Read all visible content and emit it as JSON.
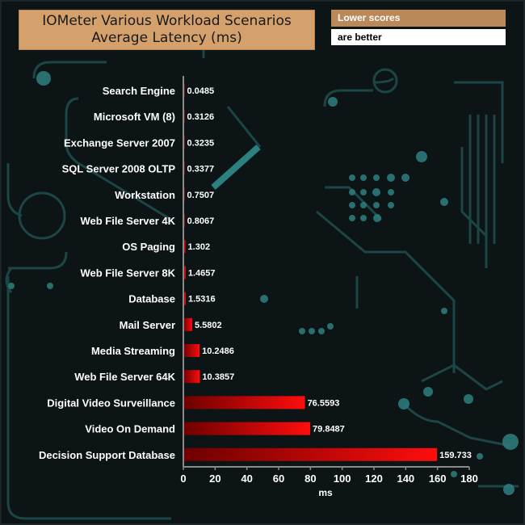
{
  "header": {
    "title_line1": "IOMeter Various Workload Scenarios",
    "title_line2": "Average Latency (ms)",
    "note_top": "Lower scores",
    "note_bottom": "are better"
  },
  "colors": {
    "bar_start": "#6e0000",
    "bar_end": "#ff0d0d",
    "title_bg": "#d4a06c",
    "note_top_bg": "#b9895a",
    "circuit": "#1f4e4f"
  },
  "chart_data": {
    "type": "bar",
    "orientation": "horizontal",
    "title": "IOMeter Various Workload Scenarios Average Latency (ms)",
    "xlabel": "ms",
    "ylabel": "",
    "xlim": [
      0,
      180
    ],
    "ticks": [
      0,
      20,
      40,
      60,
      80,
      100,
      120,
      140,
      160,
      180
    ],
    "categories": [
      "Search Engine",
      "Microsoft VM (8)",
      "Exchange Server 2007",
      "SQL Server 2008 OLTP",
      "Workstation",
      "Web File Server 4K",
      "OS Paging",
      "Web File Server 8K",
      "Database",
      "Mail Server",
      "Media Streaming",
      "Web File Server 64K",
      "Digital Video Surveillance",
      "Video On Demand",
      "Decision Support Database"
    ],
    "values": [
      0.0485,
      0.3126,
      0.3235,
      0.3377,
      0.7507,
      0.8067,
      1.302,
      1.4657,
      1.5316,
      5.5802,
      10.2486,
      10.3857,
      76.5593,
      79.8487,
      159.733
    ],
    "value_labels": [
      "0.0485",
      "0.3126",
      "0.3235",
      "0.3377",
      "0.7507",
      "0.8067",
      "1.302",
      "1.4657",
      "1.5316",
      "5.5802",
      "10.2486",
      "10.3857",
      "76.5593",
      "79.8487",
      "159.733"
    ],
    "grid": false,
    "legend": "none"
  }
}
